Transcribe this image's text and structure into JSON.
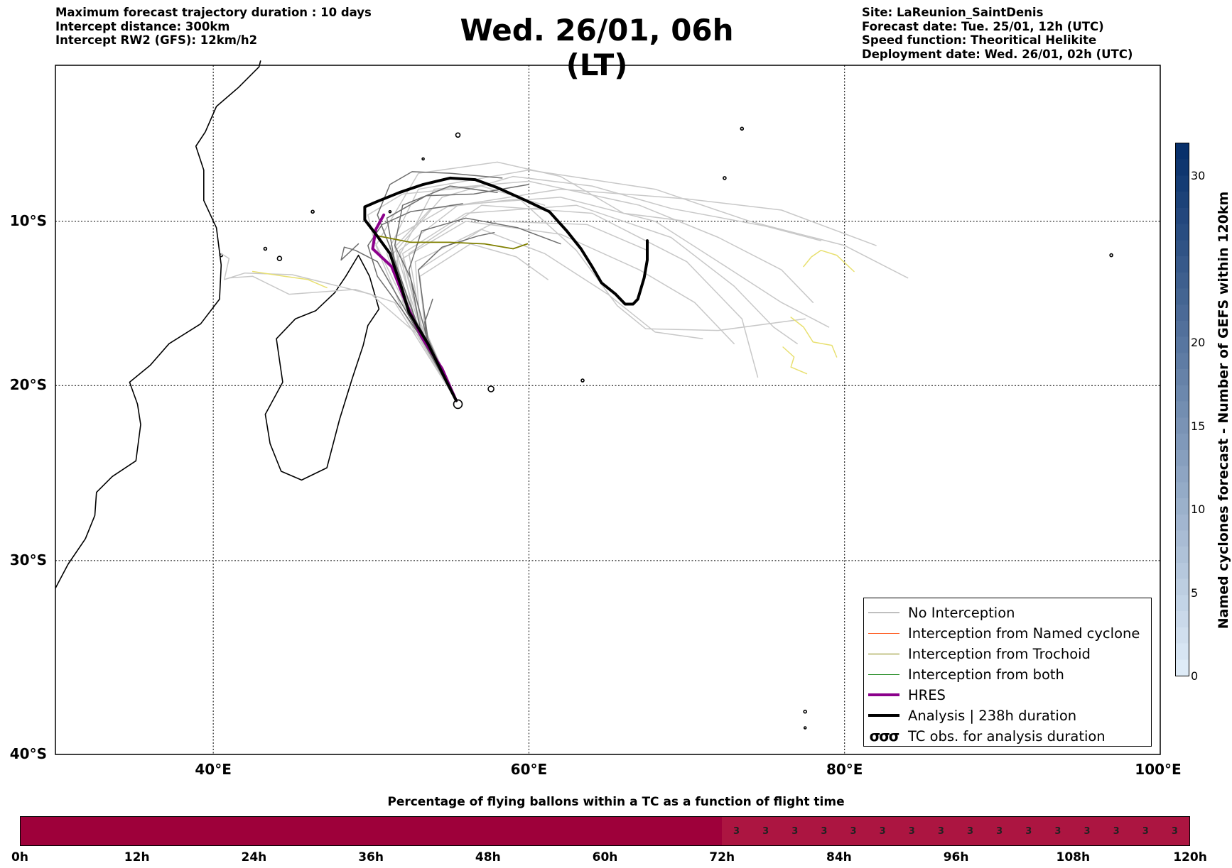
{
  "header": {
    "left": [
      "Maximum forecast trajectory duration : 10 days",
      "Intercept distance: 300km",
      "Intercept RW2 (GFS):  12km/h2"
    ],
    "title": "Wed. 26/01, 06h (LT)",
    "right": [
      "Site: LaReunion_SaintDenis",
      "Forecast date: Tue. 25/01, 12h (UTC)",
      "Speed function: Theoritical Helikite",
      "Deployment date: Wed. 26/01, 02h (UTC)"
    ]
  },
  "map": {
    "extent": {
      "lon_min": 30,
      "lon_max": 100,
      "lat_top": -0.2,
      "lat_bottom": -40
    },
    "lat_labels": [
      {
        "lat": -10,
        "text": "10°S"
      },
      {
        "lat": -20,
        "text": "20°S"
      },
      {
        "lat": -30,
        "text": "30°S"
      },
      {
        "lat": -40,
        "text": "40°S"
      }
    ],
    "lon_labels": [
      {
        "lon": 40,
        "text": "40°E"
      },
      {
        "lon": 60,
        "text": "60°E"
      },
      {
        "lon": 80,
        "text": "80°E"
      },
      {
        "lon": 100,
        "text": "100°E"
      }
    ],
    "origin": {
      "lon": 55.4,
      "lat": -20.9
    }
  },
  "colors": {
    "no_interception": "#808080",
    "named_cyclone": "#ff5a1e",
    "trochoid": "#808000",
    "both": "#228b22",
    "hres": "#8b008b",
    "analysis": "#000000",
    "tc_yellow": "#e8e070",
    "pct_full": "#9e003a",
    "pct_partial": "#ac1541"
  },
  "legend": {
    "items": [
      {
        "label": "No Interception",
        "color": "#808080",
        "width": 1.5
      },
      {
        "label": "Interception from Named cyclone",
        "color": "#ff5a1e",
        "width": 1.5
      },
      {
        "label": "Interception from Trochoid",
        "color": "#808000",
        "width": 1.5
      },
      {
        "label": "Interception from both",
        "color": "#228b22",
        "width": 1.5
      },
      {
        "label": "HRES",
        "color": "#8b008b",
        "width": 4
      },
      {
        "label": "Analysis | 238h duration",
        "color": "#000000",
        "width": 4
      }
    ],
    "tc_symbol": "σσσ",
    "tc_label": "TC obs. for analysis duration"
  },
  "colorbar": {
    "title": "Named cyclones forecast - Number of GEFS within 120km",
    "min": 0,
    "max": 32,
    "ticks": [
      {
        "value": 0,
        "label": "0"
      },
      {
        "value": 5,
        "label": "5"
      },
      {
        "value": 10,
        "label": "10"
      },
      {
        "value": 15,
        "label": "15"
      },
      {
        "value": 20,
        "label": "20"
      },
      {
        "value": 30,
        "label": "30"
      }
    ]
  },
  "percentage_bar": {
    "title": "Percentage of flying ballons within a TC as a function of flight time",
    "max_hours": 120,
    "full_until_hours": 72,
    "value_after": "3",
    "value_after_count": 16,
    "tick_labels": [
      "0h",
      "12h",
      "24h",
      "36h",
      "48h",
      "60h",
      "72h",
      "84h",
      "96h",
      "108h",
      "120h"
    ]
  },
  "chart_data": {
    "type": "line",
    "title": "Wed. 26/01, 06h (LT)",
    "xlabel": "",
    "ylabel": "",
    "xlim": [
      30,
      100
    ],
    "ylim": [
      -40,
      -0.2
    ],
    "series": [
      {
        "name": "Analysis | 238h duration",
        "points": [
          [
            55.4,
            -20.9
          ],
          [
            54.8,
            -19.8
          ],
          [
            53.6,
            -17.5
          ],
          [
            52.4,
            -15.6
          ],
          [
            51.9,
            -14.0
          ],
          [
            51.2,
            -12.0
          ],
          [
            50.3,
            -10.8
          ],
          [
            49.6,
            -9.9
          ],
          [
            49.6,
            -9.1
          ],
          [
            50.3,
            -8.8
          ],
          [
            51.8,
            -8.2
          ],
          [
            53.3,
            -7.7
          ],
          [
            55.0,
            -7.3
          ],
          [
            56.6,
            -7.4
          ],
          [
            58.0,
            -7.9
          ],
          [
            59.8,
            -8.7
          ],
          [
            61.3,
            -9.4
          ],
          [
            62.4,
            -10.6
          ],
          [
            63.3,
            -11.7
          ],
          [
            64.0,
            -12.8
          ],
          [
            64.6,
            -13.8
          ],
          [
            65.5,
            -14.5
          ],
          [
            66.1,
            -15.1
          ],
          [
            66.6,
            -15.1
          ],
          [
            66.9,
            -14.8
          ],
          [
            67.3,
            -13.5
          ],
          [
            67.5,
            -12.4
          ],
          [
            67.5,
            -11.2
          ]
        ]
      },
      {
        "name": "HRES",
        "points": [
          [
            55.4,
            -20.9
          ],
          [
            54.5,
            -19.0
          ],
          [
            53.2,
            -17.1
          ],
          [
            52.2,
            -15.0
          ],
          [
            51.3,
            -12.8
          ],
          [
            50.1,
            -11.7
          ],
          [
            50.3,
            -10.5
          ],
          [
            50.8,
            -9.6
          ]
        ]
      },
      {
        "name": "Interception from Trochoid",
        "points": [
          [
            50.4,
            -10.9
          ],
          [
            52.5,
            -11.3
          ],
          [
            55.0,
            -11.3
          ],
          [
            57.2,
            -11.4
          ],
          [
            59.0,
            -11.7
          ],
          [
            59.9,
            -11.4
          ]
        ]
      }
    ],
    "percentage_values": [
      {
        "range_h": [
          0,
          72
        ],
        "label": ""
      },
      {
        "range_h": [
          72,
          120
        ],
        "label": "3"
      }
    ]
  }
}
